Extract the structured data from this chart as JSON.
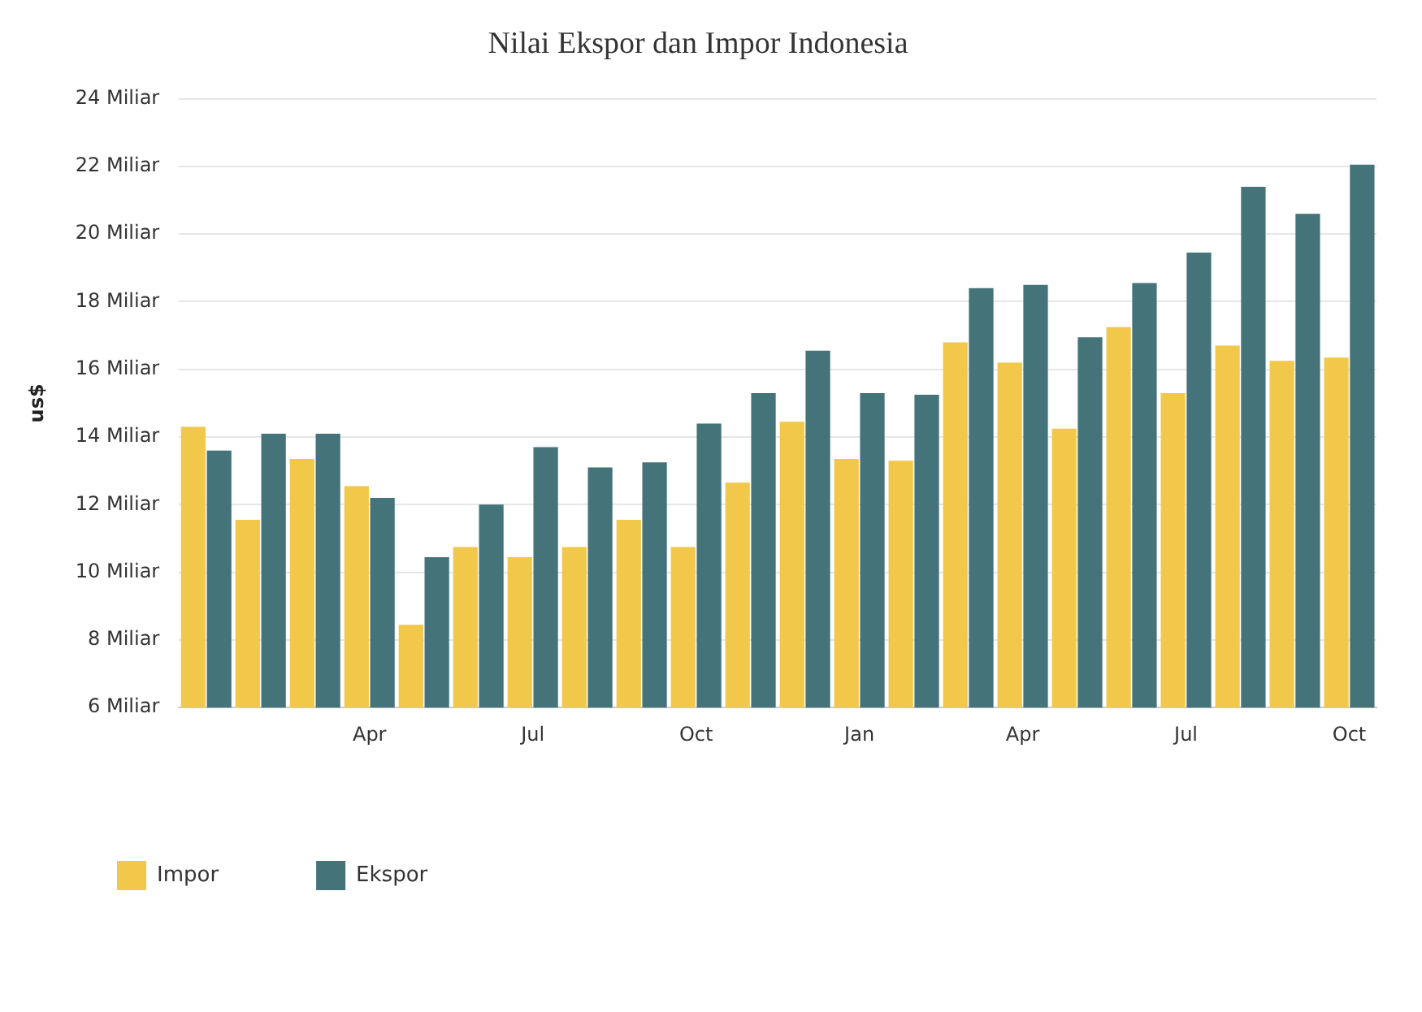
{
  "chart_data": {
    "type": "bar",
    "title": "Nilai Ekspor dan Impor Indonesia",
    "ylabel": "us$",
    "categories": [
      null,
      null,
      null,
      "Apr",
      null,
      null,
      "Jul",
      null,
      null,
      "Oct",
      null,
      null,
      "Jan",
      null,
      null,
      "Apr",
      null,
      null,
      "Jul",
      null,
      null,
      "Oct"
    ],
    "series": [
      {
        "name": "Impor",
        "color": "#f2c84b",
        "values": [
          14.3,
          11.55,
          13.35,
          12.55,
          8.45,
          10.75,
          10.45,
          10.75,
          11.55,
          10.75,
          12.65,
          14.45,
          13.35,
          13.3,
          16.8,
          16.2,
          14.25,
          17.25,
          15.3,
          16.7,
          16.25,
          16.35
        ]
      },
      {
        "name": "Ekspor",
        "color": "#44737a",
        "values": [
          13.6,
          14.1,
          14.1,
          12.2,
          10.45,
          12.0,
          13.7,
          13.1,
          13.25,
          14.4,
          15.3,
          16.55,
          15.3,
          15.25,
          18.4,
          18.5,
          16.95,
          18.55,
          19.45,
          21.4,
          20.6,
          22.05
        ]
      }
    ],
    "ylim": [
      6,
      24
    ],
    "yticks": [
      {
        "value": 6,
        "label": "6 Miliar"
      },
      {
        "value": 8,
        "label": "8 Miliar"
      },
      {
        "value": 10,
        "label": "10 Miliar"
      },
      {
        "value": 12,
        "label": "12 Miliar"
      },
      {
        "value": 14,
        "label": "14 Miliar"
      },
      {
        "value": 16,
        "label": "16 Miliar"
      },
      {
        "value": 18,
        "label": "18 Miliar"
      },
      {
        "value": 20,
        "label": "20 Miliar"
      },
      {
        "value": 22,
        "label": "22 Miliar"
      },
      {
        "value": 24,
        "label": "24 Miliar"
      }
    ],
    "grid": "y",
    "legend": "bottom left"
  }
}
